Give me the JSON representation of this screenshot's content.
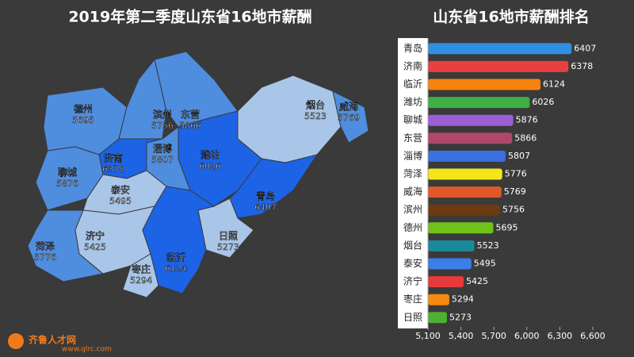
{
  "chart_data": [
    {
      "type": "map",
      "title": "2019年第二季度山东省16地市薪酬",
      "categories": [
        "德州",
        "滨州",
        "东营",
        "烟台",
        "威海",
        "济南",
        "淄博",
        "潍坊",
        "聊城",
        "泰安",
        "青岛",
        "日照",
        "菏泽",
        "济宁",
        "临沂",
        "枣庄"
      ],
      "values": [
        5695,
        5756,
        5866,
        5523,
        5769,
        6378,
        5807,
        6026,
        5876,
        5495,
        6407,
        5273,
        5776,
        5425,
        6124,
        5294
      ],
      "colors": [
        "#4f8ddf",
        "#4f8ddf",
        "#4f8ddf",
        "#a9c6e8",
        "#4f8ddf",
        "#1c63e6",
        "#4f8ddf",
        "#1c63e6",
        "#4f8ddf",
        "#a9c6e8",
        "#1c63e6",
        "#a9c6e8",
        "#4f8ddf",
        "#a9c6e8",
        "#1c63e6",
        "#a9c6e8"
      ]
    },
    {
      "type": "barh",
      "title": "山东省16地市薪酬排名",
      "categories": [
        "青岛",
        "济南",
        "临沂",
        "潍坊",
        "聊城",
        "东营",
        "淄博",
        "菏泽",
        "威海",
        "滨州",
        "德州",
        "烟台",
        "泰安",
        "济宁",
        "枣庄",
        "日照"
      ],
      "values": [
        6407,
        6378,
        6124,
        6026,
        5876,
        5866,
        5807,
        5776,
        5769,
        5756,
        5695,
        5523,
        5495,
        5425,
        5294,
        5273
      ],
      "colors": [
        "#2f8fe0",
        "#e84040",
        "#f7820e",
        "#3cb043",
        "#9c5fd6",
        "#b0476a",
        "#3a6fe0",
        "#f5e61a",
        "#e0582a",
        "#6b3a10",
        "#6ec21a",
        "#1a8a9a",
        "#3a7ee8",
        "#e83a3a",
        "#f78a0e",
        "#4cb030"
      ],
      "xlim": [
        5100,
        6600
      ],
      "xticks": [
        {
          "value": 5100,
          "label": "5,100"
        },
        {
          "value": 5400,
          "label": "5,400"
        },
        {
          "value": 5700,
          "label": "5,700"
        },
        {
          "value": 6000,
          "label": "6,000"
        },
        {
          "value": 6300,
          "label": "6,300"
        },
        {
          "value": 6600,
          "label": "6,600"
        }
      ]
    }
  ],
  "logo": {
    "name": "齐鲁人才网",
    "url": "www.qlrc.com"
  }
}
